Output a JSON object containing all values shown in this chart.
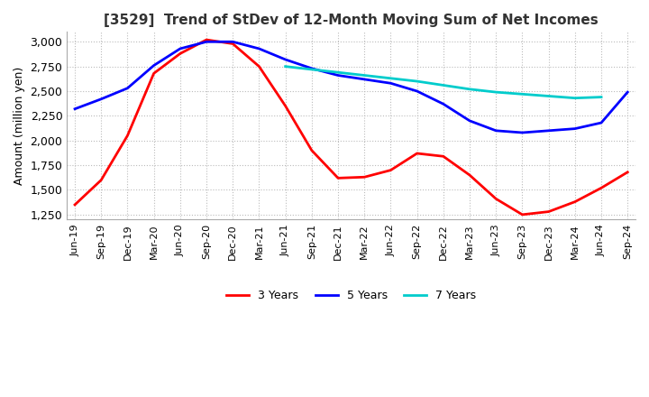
{
  "title": "[3529]  Trend of StDev of 12-Month Moving Sum of Net Incomes",
  "ylabel": "Amount (million yen)",
  "ylim": [
    1200,
    3100
  ],
  "yticks": [
    1250,
    1500,
    1750,
    2000,
    2250,
    2500,
    2750,
    3000
  ],
  "background_color": "#ffffff",
  "grid_color": "#bbbbbb",
  "series": {
    "3 Years": {
      "color": "#ff0000",
      "data": [
        [
          "Jun-19",
          1350
        ],
        [
          "Sep-19",
          1600
        ],
        [
          "Dec-19",
          2050
        ],
        [
          "Mar-20",
          2680
        ],
        [
          "Jun-20",
          2880
        ],
        [
          "Sep-20",
          3020
        ],
        [
          "Dec-20",
          2980
        ],
        [
          "Mar-21",
          2750
        ],
        [
          "Jun-21",
          2350
        ],
        [
          "Sep-21",
          1900
        ],
        [
          "Dec-21",
          1620
        ],
        [
          "Mar-22",
          1630
        ],
        [
          "Jun-22",
          1700
        ],
        [
          "Sep-22",
          1870
        ],
        [
          "Dec-22",
          1840
        ],
        [
          "Mar-23",
          1650
        ],
        [
          "Jun-23",
          1410
        ],
        [
          "Sep-23",
          1250
        ],
        [
          "Dec-23",
          1280
        ],
        [
          "Mar-24",
          1380
        ],
        [
          "Jun-24",
          1520
        ],
        [
          "Sep-24",
          1680
        ]
      ]
    },
    "5 Years": {
      "color": "#0000ff",
      "data": [
        [
          "Jun-19",
          2320
        ],
        [
          "Sep-19",
          2420
        ],
        [
          "Dec-19",
          2530
        ],
        [
          "Mar-20",
          2760
        ],
        [
          "Jun-20",
          2930
        ],
        [
          "Sep-20",
          3000
        ],
        [
          "Dec-20",
          3000
        ],
        [
          "Mar-21",
          2930
        ],
        [
          "Jun-21",
          2820
        ],
        [
          "Sep-21",
          2730
        ],
        [
          "Dec-21",
          2660
        ],
        [
          "Mar-22",
          2620
        ],
        [
          "Jun-22",
          2580
        ],
        [
          "Sep-22",
          2500
        ],
        [
          "Dec-22",
          2370
        ],
        [
          "Mar-23",
          2200
        ],
        [
          "Jun-23",
          2100
        ],
        [
          "Sep-23",
          2080
        ],
        [
          "Dec-23",
          2100
        ],
        [
          "Mar-24",
          2120
        ],
        [
          "Jun-24",
          2180
        ],
        [
          "Sep-24",
          2490
        ]
      ]
    },
    "7 Years": {
      "color": "#00cccc",
      "data": [
        [
          "Jun-19",
          null
        ],
        [
          "Sep-19",
          null
        ],
        [
          "Dec-19",
          null
        ],
        [
          "Mar-20",
          null
        ],
        [
          "Jun-20",
          null
        ],
        [
          "Sep-20",
          null
        ],
        [
          "Dec-20",
          null
        ],
        [
          "Mar-21",
          null
        ],
        [
          "Jun-21",
          2750
        ],
        [
          "Sep-21",
          2720
        ],
        [
          "Dec-21",
          2690
        ],
        [
          "Mar-22",
          2660
        ],
        [
          "Jun-22",
          2630
        ],
        [
          "Sep-22",
          2600
        ],
        [
          "Dec-22",
          2560
        ],
        [
          "Mar-23",
          2520
        ],
        [
          "Jun-23",
          2490
        ],
        [
          "Sep-23",
          2470
        ],
        [
          "Dec-23",
          2450
        ],
        [
          "Mar-24",
          2430
        ],
        [
          "Jun-24",
          2440
        ],
        [
          "Sep-24",
          null
        ]
      ]
    },
    "10 Years": {
      "color": "#008000",
      "data": [
        [
          "Jun-19",
          null
        ],
        [
          "Sep-19",
          null
        ],
        [
          "Dec-19",
          null
        ],
        [
          "Mar-20",
          null
        ],
        [
          "Jun-20",
          null
        ],
        [
          "Sep-20",
          null
        ],
        [
          "Dec-20",
          null
        ],
        [
          "Mar-21",
          null
        ],
        [
          "Jun-21",
          null
        ],
        [
          "Sep-21",
          null
        ],
        [
          "Dec-21",
          null
        ],
        [
          "Mar-22",
          null
        ],
        [
          "Jun-22",
          null
        ],
        [
          "Sep-22",
          null
        ],
        [
          "Dec-22",
          null
        ],
        [
          "Mar-23",
          null
        ],
        [
          "Jun-23",
          null
        ],
        [
          "Sep-23",
          null
        ],
        [
          "Dec-23",
          null
        ],
        [
          "Mar-24",
          null
        ],
        [
          "Jun-24",
          null
        ],
        [
          "Sep-24",
          null
        ]
      ]
    }
  },
  "x_labels": [
    "Jun-19",
    "Sep-19",
    "Dec-19",
    "Mar-20",
    "Jun-20",
    "Sep-20",
    "Dec-20",
    "Mar-21",
    "Jun-21",
    "Sep-21",
    "Dec-21",
    "Mar-22",
    "Jun-22",
    "Sep-22",
    "Dec-22",
    "Mar-23",
    "Jun-23",
    "Sep-23",
    "Dec-23",
    "Mar-24",
    "Jun-24",
    "Sep-24"
  ]
}
